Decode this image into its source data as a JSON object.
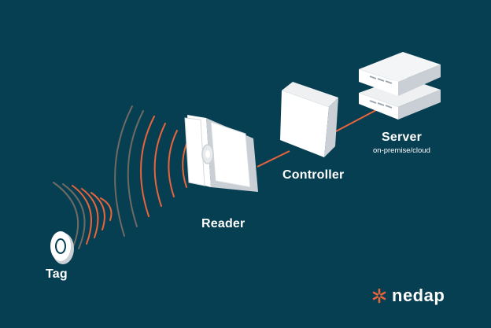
{
  "diagram": {
    "labels": {
      "tag": "Tag",
      "reader": "Reader",
      "controller": "Controller",
      "server": "Server",
      "server_sub": "on-premise/cloud"
    },
    "brand": {
      "name": "nedap",
      "icon": "nedap-star-logo"
    },
    "colors": {
      "background": "#073f52",
      "accent": "#e8643a",
      "device": "#ffffff",
      "device_shade": "#c9cfd4",
      "text": "#ffffff"
    }
  }
}
